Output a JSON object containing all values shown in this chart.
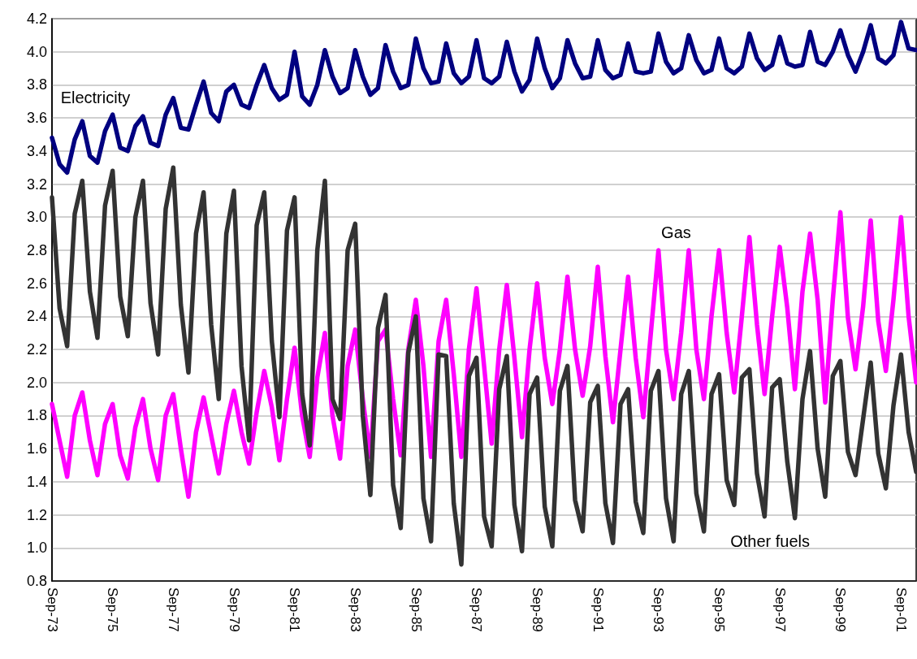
{
  "chart_data": {
    "type": "line",
    "categories": [
      "Sep-73",
      null,
      null,
      null,
      null,
      null,
      null,
      null,
      "Sep-75",
      null,
      null,
      null,
      null,
      null,
      null,
      null,
      "Sep-77",
      null,
      null,
      null,
      null,
      null,
      null,
      null,
      "Sep-79",
      null,
      null,
      null,
      null,
      null,
      null,
      null,
      "Sep-81",
      null,
      null,
      null,
      null,
      null,
      null,
      null,
      "Sep-83",
      null,
      null,
      null,
      null,
      null,
      null,
      null,
      "Sep-85",
      null,
      null,
      null,
      null,
      null,
      null,
      null,
      "Sep-87",
      null,
      null,
      null,
      null,
      null,
      null,
      null,
      "Sep-89",
      null,
      null,
      null,
      null,
      null,
      null,
      null,
      "Sep-91",
      null,
      null,
      null,
      null,
      null,
      null,
      null,
      "Sep-93",
      null,
      null,
      null,
      null,
      null,
      null,
      null,
      "Sep-95",
      null,
      null,
      null,
      null,
      null,
      null,
      null,
      "Sep-97",
      null,
      null,
      null,
      null,
      null,
      null,
      null,
      "Sep-99",
      null,
      null,
      null,
      null,
      null,
      null,
      null,
      "Sep-01",
      null,
      null
    ],
    "series": [
      {
        "name": "Electricity",
        "color": "#000080",
        "values": [
          3.48,
          3.32,
          3.27,
          3.47,
          3.58,
          3.37,
          3.33,
          3.52,
          3.62,
          3.42,
          3.4,
          3.55,
          3.61,
          3.45,
          3.43,
          3.62,
          3.72,
          3.54,
          3.53,
          3.68,
          3.82,
          3.63,
          3.58,
          3.76,
          3.8,
          3.68,
          3.66,
          3.8,
          3.92,
          3.78,
          3.71,
          3.74,
          4.0,
          3.73,
          3.68,
          3.8,
          4.01,
          3.85,
          3.75,
          3.78,
          4.01,
          3.85,
          3.74,
          3.78,
          4.04,
          3.88,
          3.78,
          3.8,
          4.08,
          3.9,
          3.81,
          3.82,
          4.05,
          3.87,
          3.81,
          3.85,
          4.07,
          3.84,
          3.81,
          3.85,
          4.06,
          3.88,
          3.76,
          3.83,
          4.08,
          3.9,
          3.78,
          3.84,
          4.07,
          3.93,
          3.84,
          3.85,
          4.07,
          3.89,
          3.84,
          3.86,
          4.05,
          3.88,
          3.87,
          3.88,
          4.11,
          3.94,
          3.87,
          3.9,
          4.1,
          3.95,
          3.87,
          3.89,
          4.08,
          3.9,
          3.87,
          3.91,
          4.11,
          3.96,
          3.89,
          3.92,
          4.09,
          3.93,
          3.91,
          3.92,
          4.12,
          3.94,
          3.92,
          4.0,
          4.13,
          3.98,
          3.88,
          4.0,
          4.16,
          3.96,
          3.93,
          3.98,
          4.18,
          4.02,
          4.01
        ]
      },
      {
        "name": "Gas",
        "color": "#ff00ff",
        "values": [
          1.87,
          1.65,
          1.43,
          1.8,
          1.94,
          1.65,
          1.44,
          1.75,
          1.87,
          1.56,
          1.42,
          1.73,
          1.9,
          1.6,
          1.41,
          1.8,
          1.93,
          1.6,
          1.31,
          1.7,
          1.91,
          1.68,
          1.45,
          1.75,
          1.95,
          1.7,
          1.51,
          1.82,
          2.07,
          1.85,
          1.53,
          1.9,
          2.21,
          1.8,
          1.55,
          2.03,
          2.3,
          1.8,
          1.54,
          2.1,
          2.32,
          1.9,
          1.55,
          2.25,
          2.32,
          1.9,
          1.56,
          2.2,
          2.5,
          2.1,
          1.55,
          2.25,
          2.5,
          2.05,
          1.55,
          2.2,
          2.57,
          2.1,
          1.63,
          2.2,
          2.59,
          2.15,
          1.67,
          2.2,
          2.6,
          2.15,
          1.87,
          2.2,
          2.64,
          2.2,
          1.92,
          2.22,
          2.7,
          2.16,
          1.76,
          2.2,
          2.64,
          2.15,
          1.79,
          2.3,
          2.8,
          2.2,
          1.9,
          2.3,
          2.8,
          2.2,
          1.9,
          2.4,
          2.8,
          2.3,
          1.94,
          2.4,
          2.88,
          2.35,
          1.93,
          2.4,
          2.82,
          2.45,
          1.96,
          2.55,
          2.9,
          2.5,
          1.88,
          2.5,
          3.03,
          2.39,
          2.08,
          2.46,
          2.98,
          2.37,
          2.07,
          2.5,
          3.0,
          2.4,
          2.0
        ]
      },
      {
        "name": "Other fuels",
        "color": "#333333",
        "values": [
          3.12,
          2.45,
          2.22,
          3.02,
          3.22,
          2.55,
          2.27,
          3.07,
          3.28,
          2.52,
          2.28,
          3.0,
          3.22,
          2.48,
          2.17,
          3.05,
          3.3,
          2.47,
          2.06,
          2.9,
          3.15,
          2.35,
          1.9,
          2.9,
          3.16,
          2.1,
          1.65,
          2.95,
          3.15,
          2.25,
          1.79,
          2.92,
          3.12,
          1.93,
          1.62,
          2.8,
          3.22,
          1.9,
          1.78,
          2.8,
          2.96,
          1.8,
          1.32,
          2.33,
          2.53,
          1.38,
          1.12,
          2.18,
          2.4,
          1.3,
          1.04,
          2.17,
          2.16,
          1.27,
          0.9,
          2.04,
          2.15,
          1.19,
          1.01,
          1.96,
          2.16,
          1.26,
          0.98,
          1.93,
          2.03,
          1.25,
          1.01,
          1.95,
          2.1,
          1.29,
          1.1,
          1.88,
          1.98,
          1.27,
          1.03,
          1.87,
          1.96,
          1.28,
          1.09,
          1.95,
          2.07,
          1.3,
          1.04,
          1.93,
          2.07,
          1.33,
          1.1,
          1.93,
          2.05,
          1.41,
          1.26,
          2.03,
          2.08,
          1.45,
          1.19,
          1.97,
          2.02,
          1.52,
          1.18,
          1.9,
          2.19,
          1.6,
          1.31,
          2.04,
          2.13,
          1.58,
          1.44,
          1.78,
          2.12,
          1.57,
          1.36,
          1.86,
          2.17,
          1.7,
          1.46
        ]
      }
    ],
    "ylim": [
      0.8,
      4.2
    ],
    "yticks": [
      {
        "value": 0.8,
        "label": "0.8"
      },
      {
        "value": 1,
        "label": "1.0"
      },
      {
        "value": 1.2,
        "label": "1.2"
      },
      {
        "value": 1.4,
        "label": "1.4"
      },
      {
        "value": 1.6,
        "label": "1.6"
      },
      {
        "value": 1.8,
        "label": "1.8"
      },
      {
        "value": 2,
        "label": "2.0"
      },
      {
        "value": 2.2,
        "label": "2.2"
      },
      {
        "value": 2.4,
        "label": "2.4"
      },
      {
        "value": 2.6,
        "label": "2.6"
      },
      {
        "value": 2.8,
        "label": "2.8"
      },
      {
        "value": 3,
        "label": "3.0"
      },
      {
        "value": 3.2,
        "label": "3.2"
      },
      {
        "value": 3.4,
        "label": "3.4"
      },
      {
        "value": 3.6,
        "label": "3.6"
      },
      {
        "value": 3.8,
        "label": "3.8"
      },
      {
        "value": 4,
        "label": "4.0"
      },
      {
        "value": 4.2,
        "label": "4.2"
      }
    ],
    "grid": "y",
    "legend": false,
    "marker": "none",
    "line_style": "solid"
  }
}
